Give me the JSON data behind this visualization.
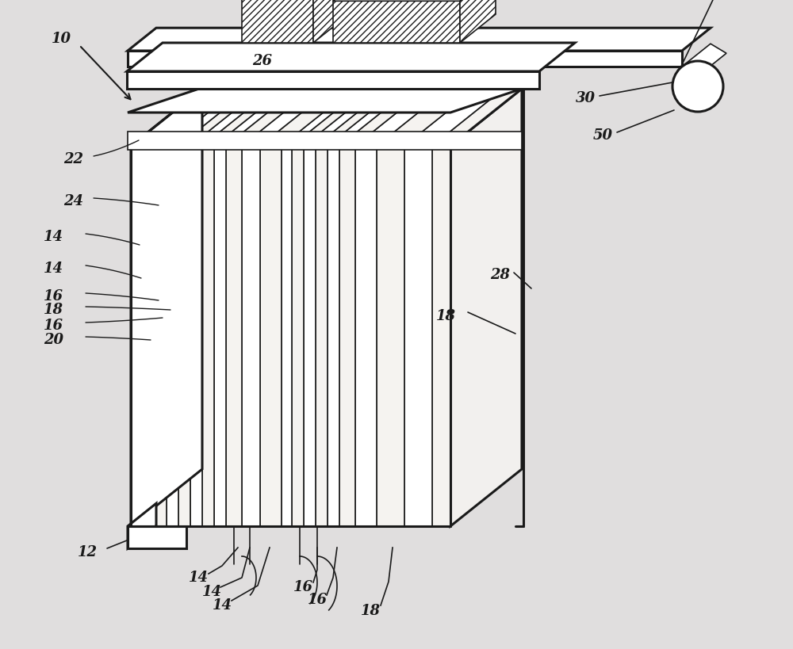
{
  "bg_color": "#e0dede",
  "line_color": "#1a1a1a",
  "lw_thick": 2.2,
  "lw_thin": 1.2,
  "lw_label": 1.0,
  "font_size": 13,
  "fig_w": 10.0,
  "fig_h": 8.19,
  "dpi": 100
}
